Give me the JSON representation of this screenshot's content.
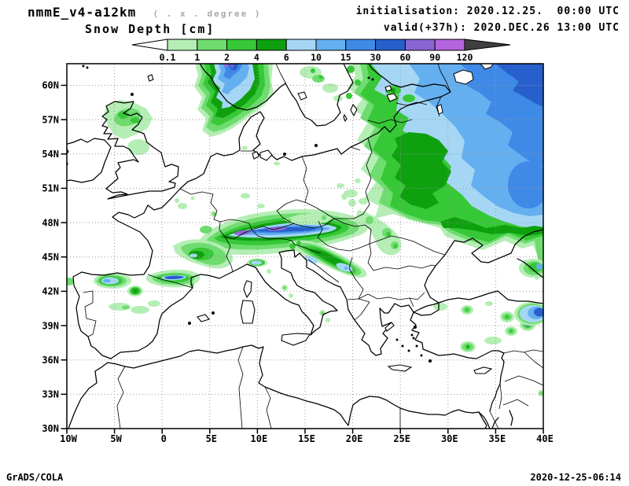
{
  "header": {
    "model": "nmmE_v4-a12km",
    "resolution_note": "( . x . degree )",
    "variable": "Snow Depth [cm]",
    "init_label": "initialisation: 2020.12.25.  00:00 UTC",
    "valid_label": "valid(+37h): 2020.DEC.26 13:00 UTC"
  },
  "colorbar": {
    "levels": [
      "0.1",
      "1",
      "2",
      "4",
      "6",
      "10",
      "15",
      "30",
      "60",
      "90",
      "120"
    ],
    "colors": [
      "#b4eeb4",
      "#6edc6e",
      "#37c837",
      "#0fa00f",
      "#a5d7f5",
      "#64aff0",
      "#3f8ae6",
      "#2760cd",
      "#8a64d2",
      "#b364de"
    ],
    "under_color": "#ffffff",
    "over_color": "#3f3f3f"
  },
  "map": {
    "lat_labels": [
      "60N",
      "57N",
      "54N",
      "51N",
      "48N",
      "45N",
      "42N",
      "39N",
      "36N",
      "33N",
      "30N"
    ],
    "lat_values": [
      60,
      57,
      54,
      51,
      48,
      45,
      42,
      39,
      36,
      33,
      30
    ],
    "lon_labels": [
      "10W",
      "5W",
      "0",
      "5E",
      "10E",
      "15E",
      "20E",
      "25E",
      "30E",
      "35E",
      "40E"
    ],
    "lon_values": [
      -10,
      -5,
      0,
      5,
      10,
      15,
      20,
      25,
      30,
      35,
      40
    ]
  },
  "footer": {
    "credit": "GrADS/COLA",
    "timestamp": "2020-12-25-06:14"
  },
  "chart_data": {
    "type": "heatmap",
    "subtype": "filled-contour-map",
    "title": "Snow Depth [cm]",
    "model": "nmmE_v4-a12km",
    "initialisation": "2020.12.25. 00:00 UTC",
    "valid": "2020.DEC.26 13:00 UTC",
    "forecast_hour": "+37h",
    "region": {
      "lon_min": "10W",
      "lon_max": "40E",
      "lat_min": "30N",
      "lat_max": "~62N",
      "grid_lon_step_deg": 5,
      "grid_lat_step_deg": 3,
      "grid": "dotted"
    },
    "contour_levels_cm": [
      0.1,
      1,
      2,
      4,
      6,
      10,
      15,
      30,
      60,
      90,
      120
    ],
    "legend_position": "top-center",
    "features": [
      {
        "area": "Southern Norway / Scandinavia",
        "snow_depth_cm": "30-120"
      },
      {
        "area": "NW Russia (northeast of map)",
        "snow_depth_cm": "15-60"
      },
      {
        "area": "Finland and Baltic states",
        "snow_depth_cm": "1-10"
      },
      {
        "area": "Belarus / western Russia",
        "snow_depth_cm": "4-6"
      },
      {
        "area": "Alps",
        "snow_depth_cm": "30-120"
      },
      {
        "area": "Massif Central (France)",
        "snow_depth_cm": "4-10"
      },
      {
        "area": "Pyrenees",
        "snow_depth_cm": "15-60"
      },
      {
        "area": "Cantabrian Mountains (N Spain)",
        "snow_depth_cm": "6-15"
      },
      {
        "area": "Central Spain mountains",
        "snow_depth_cm": "1-6"
      },
      {
        "area": "Scotland",
        "snow_depth_cm": "0.1-2"
      },
      {
        "area": "Dinaric Alps / Balkans",
        "snow_depth_cm": "4-15"
      },
      {
        "area": "Carpathians",
        "snow_depth_cm": "0.1-4"
      },
      {
        "area": "Anatolia (scattered)",
        "snow_depth_cm": "0.1-4"
      },
      {
        "area": "Eastern Turkey / Armenian highlands",
        "snow_depth_cm": "15-60"
      },
      {
        "area": "Caucasus (map edge)",
        "snow_depth_cm": "4-15"
      }
    ]
  }
}
